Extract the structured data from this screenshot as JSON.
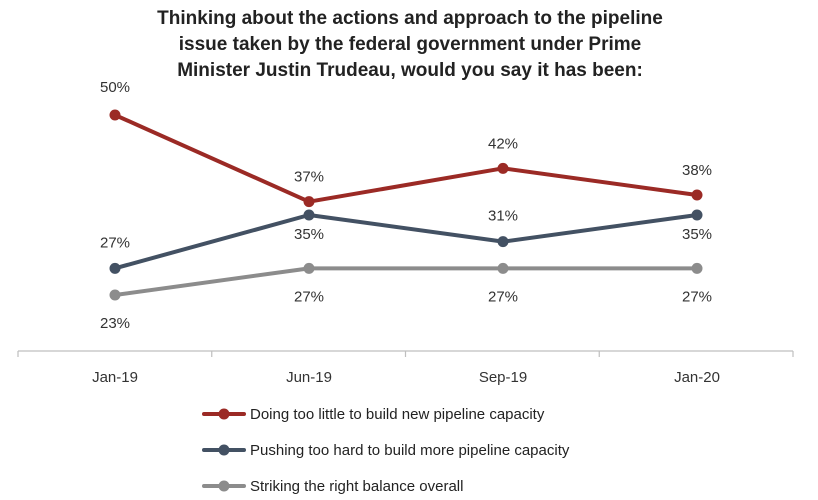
{
  "chart_data": {
    "type": "line",
    "title": "Thinking about the actions and approach to the pipeline issue taken by the federal government under Prime Minister Justin Trudeau, would you say it has been:",
    "categories": [
      "Jan-19",
      "Jun-19",
      "Sep-19",
      "Jan-20"
    ],
    "ylim": [
      15,
      55
    ],
    "grid": false,
    "legend_position": "bottom",
    "value_suffix": "%",
    "series": [
      {
        "name": "Doing too little to build new pipeline capacity",
        "values": [
          50,
          37,
          42,
          38
        ],
        "color": "#9b2a25"
      },
      {
        "name": "Pushing too hard to build more pipeline capacity",
        "values": [
          27,
          35,
          31,
          35
        ],
        "color": "#435163"
      },
      {
        "name": "Striking the right balance overall",
        "values": [
          23,
          27,
          27,
          27
        ],
        "color": "#8c8c8c"
      }
    ]
  }
}
